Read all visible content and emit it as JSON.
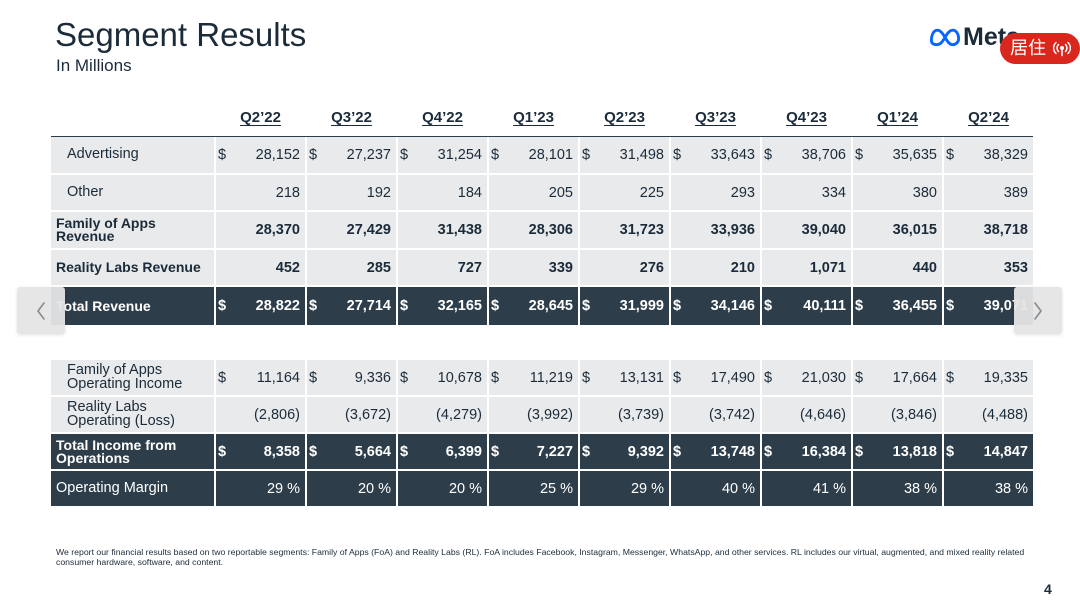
{
  "slide": {
    "title": "Segment Results",
    "subtitle": "In Millions",
    "logo_text": "Meta",
    "footnote": "We report our financial results based on two reportable segments: Family of Apps (FoA) and Reality Labs (RL). FoA includes Facebook, Instagram, Messenger, WhatsApp, and other services. RL includes our virtual, augmented, and mixed reality related consumer hardware, software, and content.",
    "page_number": "4"
  },
  "overlay": {
    "badge_label": "居住"
  },
  "icons": {
    "logo": "meta-infinity-icon",
    "badge": "broadcast-icon",
    "previous": "chevron-left-icon",
    "next": "chevron-right-icon"
  },
  "colors": {
    "text": "#1c2b39",
    "dark_row": "#2d3e4a",
    "light_row": "#e8eaec",
    "badge": "#d9271d",
    "logo_blue": "#0866ff"
  },
  "table": {
    "quarters": [
      "Q2’22",
      "Q3’22",
      "Q4’22",
      "Q1’23",
      "Q2’23",
      "Q3’23",
      "Q4’23",
      "Q1’24",
      "Q2’24"
    ],
    "revenue_rows": [
      {
        "label": "Advertising",
        "currency": "$",
        "values": [
          "28,152",
          "27,237",
          "31,254",
          "28,101",
          "31,498",
          "33,643",
          "38,706",
          "35,635",
          "38,329"
        ]
      },
      {
        "label": "Other",
        "values": [
          "218",
          "192",
          "184",
          "205",
          "225",
          "293",
          "334",
          "380",
          "389"
        ]
      },
      {
        "label": "Family of Apps Revenue",
        "values": [
          "28,370",
          "27,429",
          "31,438",
          "28,306",
          "31,723",
          "33,936",
          "39,040",
          "36,015",
          "38,718"
        ]
      },
      {
        "label": "Reality Labs Revenue",
        "values": [
          "452",
          "285",
          "727",
          "339",
          "276",
          "210",
          "1,071",
          "440",
          "353"
        ]
      },
      {
        "label": "Total Revenue",
        "currency": "$",
        "values": [
          "28,822",
          "27,714",
          "32,165",
          "28,645",
          "31,999",
          "34,146",
          "40,111",
          "36,455",
          "39,071"
        ]
      }
    ],
    "income_rows": [
      {
        "label": "Family of Apps Operating Income",
        "currency": "$",
        "values": [
          "11,164",
          "9,336",
          "10,678",
          "11,219",
          "13,131",
          "17,490",
          "21,030",
          "17,664",
          "19,335"
        ]
      },
      {
        "label": "Reality Labs Operating (Loss)",
        "values": [
          "(2,806)",
          "(3,672)",
          "(4,279)",
          "(3,992)",
          "(3,739)",
          "(3,742)",
          "(4,646)",
          "(3,846)",
          "(4,488)"
        ]
      },
      {
        "label": "Total Income from Operations",
        "currency": "$",
        "values": [
          "8,358",
          "5,664",
          "6,399",
          "7,227",
          "9,392",
          "13,748",
          "16,384",
          "13,818",
          "14,847"
        ]
      },
      {
        "label": "Operating Margin",
        "values": [
          "29 %",
          "20 %",
          "20 %",
          "25 %",
          "29 %",
          "40 %",
          "41 %",
          "38 %",
          "38 %"
        ]
      }
    ]
  }
}
